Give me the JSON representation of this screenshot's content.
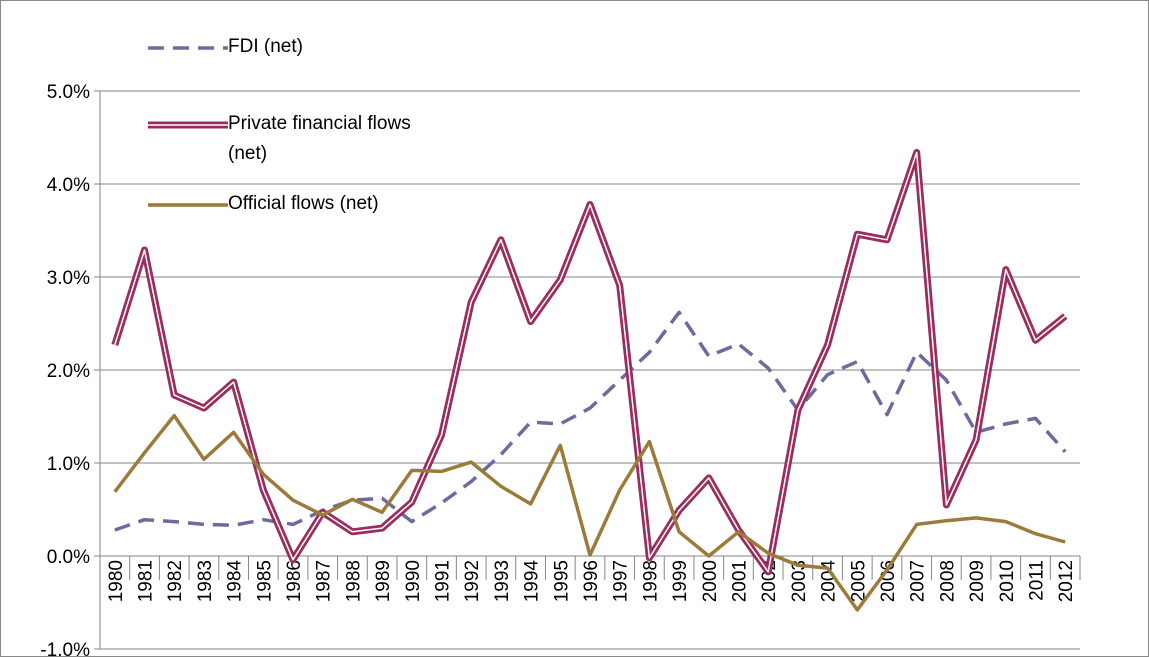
{
  "chart_data": {
    "type": "line",
    "categories": [
      "1980",
      "1981",
      "1982",
      "1983",
      "1984",
      "1985",
      "1986",
      "1987",
      "1988",
      "1989",
      "1990",
      "1991",
      "1992",
      "1993",
      "1994",
      "1995",
      "1996",
      "1997",
      "1998",
      "1999",
      "2000",
      "2001",
      "2002",
      "2003",
      "2004",
      "2005",
      "2006",
      "2007",
      "2008",
      "2009",
      "2010",
      "2011",
      "2012"
    ],
    "ylim": [
      -1,
      5
    ],
    "yticks": [
      {
        "value": -1,
        "label": "-1.0%"
      },
      {
        "value": 0,
        "label": "0.0%"
      },
      {
        "value": 1,
        "label": "1.0%"
      },
      {
        "value": 2,
        "label": "2.0%"
      },
      {
        "value": 3,
        "label": "3.0%"
      },
      {
        "value": 4,
        "label": "4.0%"
      },
      {
        "value": 5,
        "label": "5.0%"
      }
    ],
    "grid": true,
    "legend": "top-left",
    "series": [
      {
        "name": "FDI (net)",
        "color": "#6b6b9e",
        "style": "dashed",
        "values": [
          0.28,
          0.39,
          0.37,
          0.34,
          0.33,
          0.39,
          0.34,
          0.49,
          0.6,
          0.62,
          0.37,
          0.57,
          0.8,
          1.09,
          1.44,
          1.42,
          1.59,
          1.89,
          2.19,
          2.62,
          2.15,
          2.28,
          2.02,
          1.57,
          1.95,
          2.09,
          1.52,
          2.19,
          1.89,
          1.33,
          1.42,
          1.48,
          1.12
        ]
      },
      {
        "name": "Private financial flows (net)",
        "color": "#9b2d5e",
        "style": "double",
        "values": [
          2.27,
          3.29,
          1.73,
          1.59,
          1.87,
          0.71,
          -0.04,
          0.47,
          0.26,
          0.3,
          0.58,
          1.3,
          2.73,
          3.4,
          2.52,
          2.97,
          3.78,
          2.91,
          -0.02,
          0.49,
          0.84,
          0.28,
          -0.17,
          1.57,
          2.27,
          3.46,
          3.4,
          4.34,
          0.55,
          1.25,
          3.08,
          2.32,
          2.58
        ]
      },
      {
        "name": "Official flows (net)",
        "color": "#9c7a3a",
        "style": "solid",
        "values": [
          0.69,
          1.11,
          1.51,
          1.04,
          1.33,
          0.88,
          0.6,
          0.44,
          0.61,
          0.47,
          0.92,
          0.91,
          1.01,
          0.75,
          0.56,
          1.19,
          0.01,
          0.71,
          1.23,
          0.26,
          0,
          0.26,
          0.03,
          -0.1,
          -0.13,
          -0.58,
          -0.15,
          0.34,
          0.38,
          0.41,
          0.37,
          0.24,
          0.15
        ]
      }
    ]
  }
}
